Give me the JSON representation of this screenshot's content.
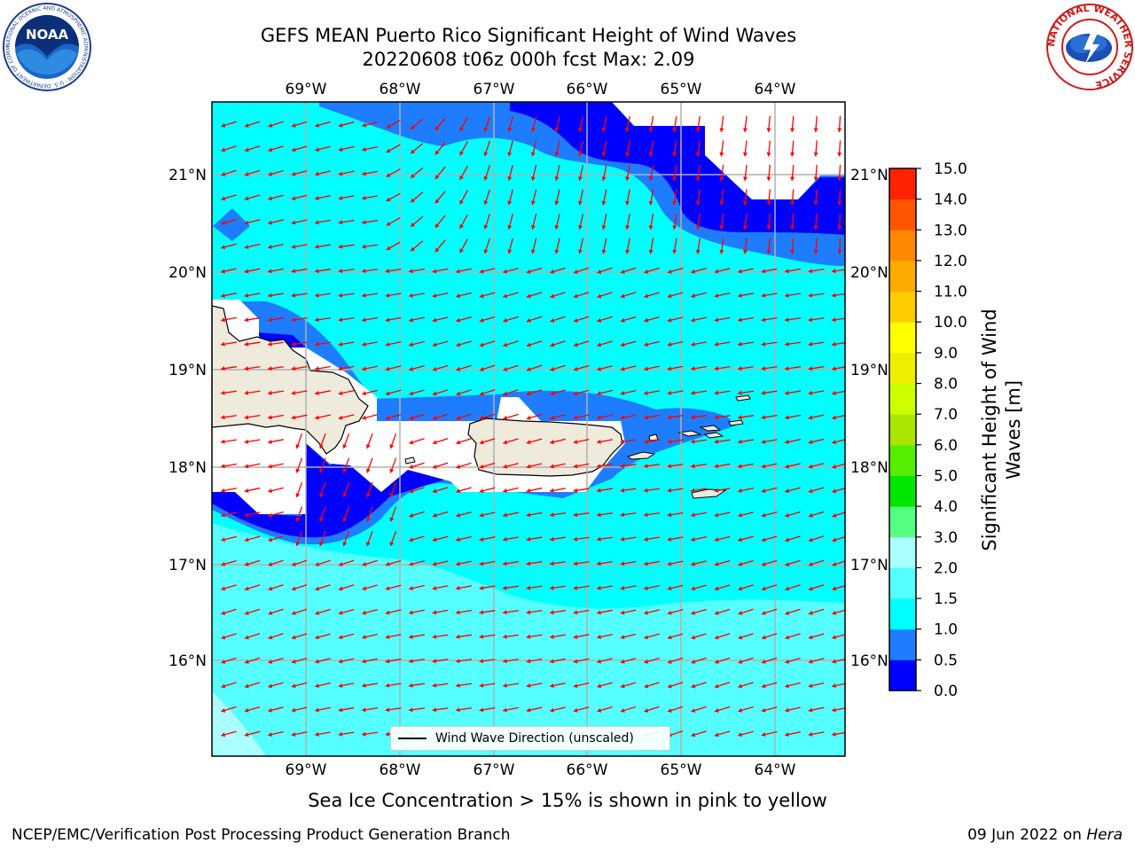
{
  "title": {
    "line1": "GEFS MEAN Puerto Rico Significant Height of Wind Waves",
    "line2": "20220608 t06z 000h fcst   Max: 2.09"
  },
  "map": {
    "lon_labels": [
      "69°W",
      "68°W",
      "67°W",
      "66°W",
      "65°W",
      "64°W"
    ],
    "lat_labels": [
      "21°N",
      "20°N",
      "19°N",
      "18°N",
      "17°N",
      "16°N"
    ],
    "legend_label": "Wind Wave Direction (unscaled)",
    "ocean_base_color": "#00ffff",
    "land_color": "#eeeadc",
    "arrow_color": "#ff0000"
  },
  "colorbar": {
    "label_line1": "Significant Height of Wind",
    "label_line2": "Waves [m]",
    "ticks": [
      "0.0",
      "0.5",
      "1.0",
      "1.5",
      "2.0",
      "3.0",
      "4.0",
      "5.0",
      "6.0",
      "7.0",
      "8.0",
      "9.0",
      "10.0",
      "11.0",
      "12.0",
      "13.0",
      "14.0",
      "15.0"
    ],
    "colors": [
      "#0000ff",
      "#1e7dff",
      "#00ffff",
      "#55ffff",
      "#aaffff",
      "#55ff7f",
      "#00e600",
      "#55ee00",
      "#aae600",
      "#ccff00",
      "#eeee00",
      "#ffff00",
      "#ffcc00",
      "#ffaa00",
      "#ff8800",
      "#ff5500",
      "#ff2200"
    ]
  },
  "logos": {
    "noaa_text": "NOAA",
    "noaa_ring_text": "NATIONAL OCEANIC AND ATMOSPHERIC ADMINISTRATION · U.S. DEPARTMENT OF COMMERCE",
    "nws_ring_text": "NATIONAL WEATHER SERVICE"
  },
  "notes": {
    "sea_ice": "Sea Ice Concentration > 15% is shown in pink to yellow",
    "branch": "NCEP/EMC/Verification Post Processing Product Generation Branch",
    "date_prefix": "09 Jun 2022 on ",
    "date_machine": "Hera"
  }
}
